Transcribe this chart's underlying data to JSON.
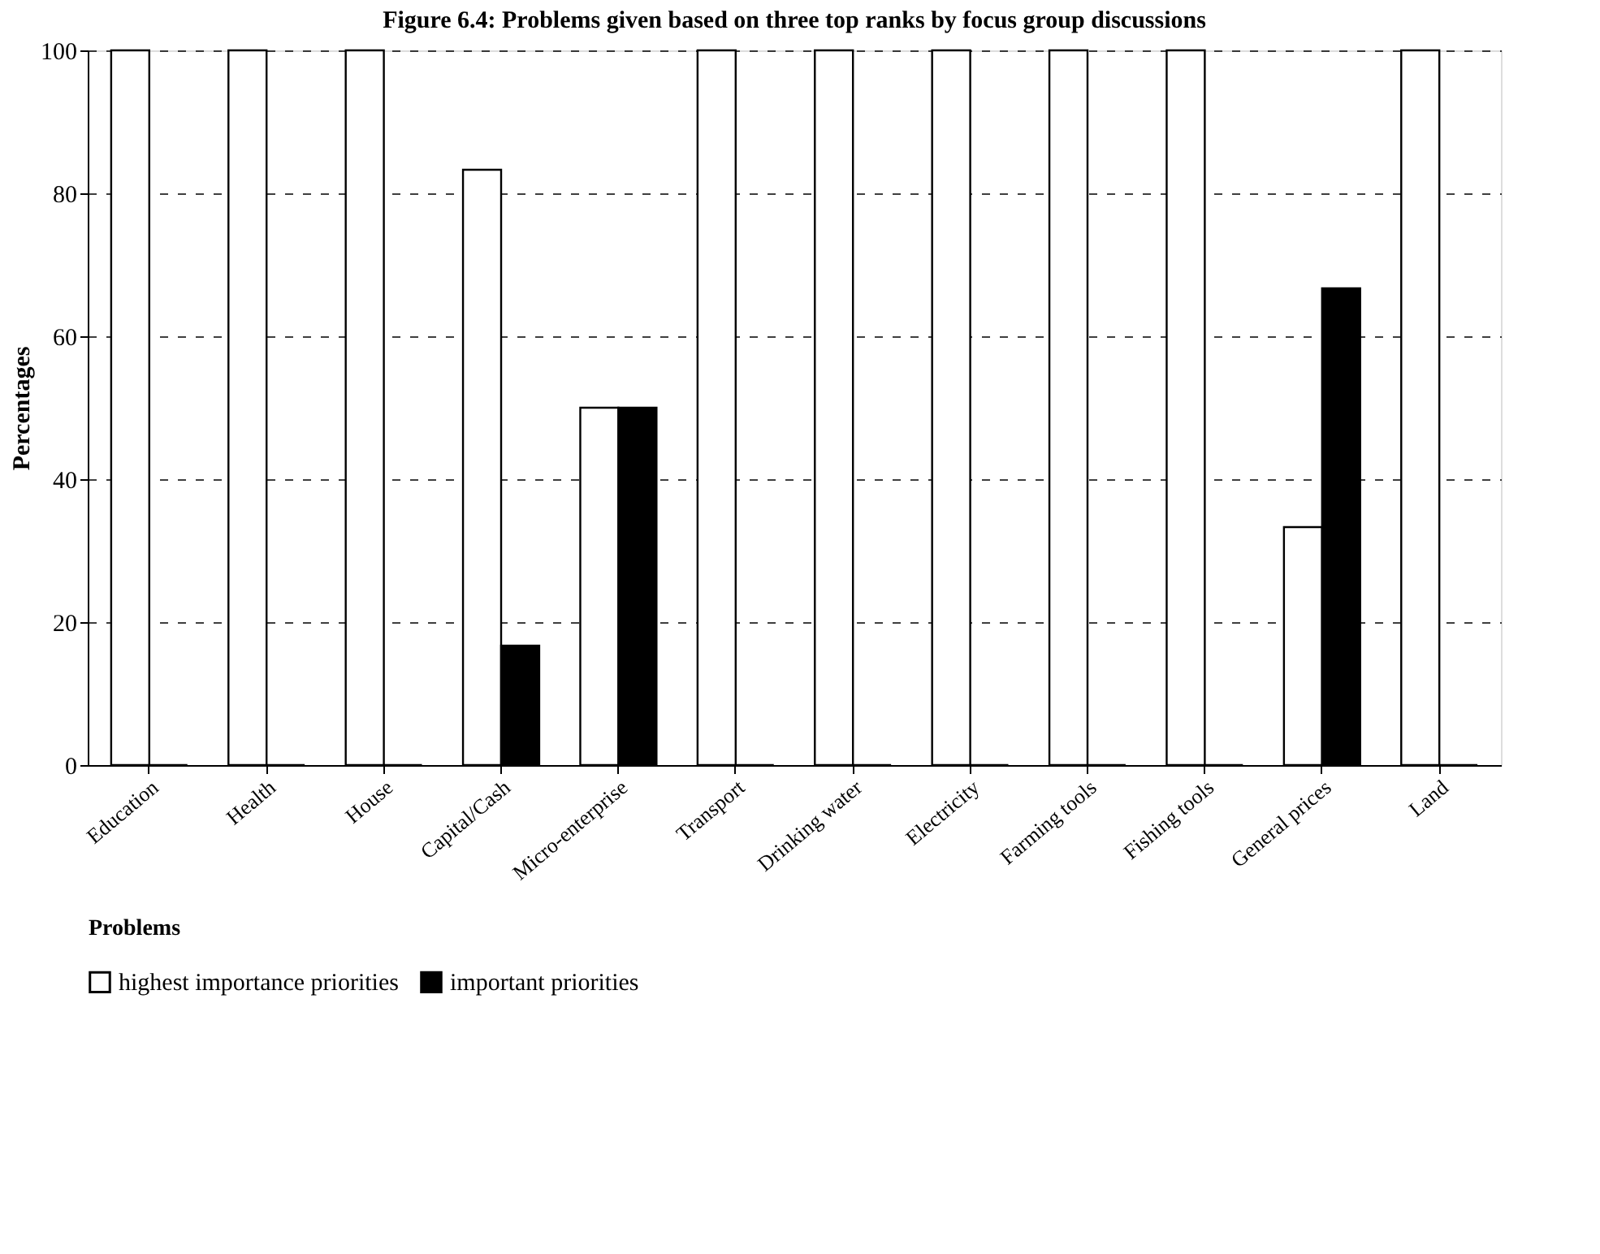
{
  "chart_data": {
    "type": "bar",
    "title": "Figure 6.4: Problems given based on three top ranks by focus group discussions",
    "xlabel": "Problems",
    "ylabel": "Percentages",
    "categories": [
      "Education",
      "Health",
      "House",
      "Capital/Cash",
      "Micro-enterprise",
      "Transport",
      "Drinking water",
      "Electricity",
      "Farming tools",
      "Fishing tools",
      "General prices",
      "Land"
    ],
    "series": [
      {
        "name": "highest importance priorities",
        "color": "#ffffff",
        "values": [
          100,
          100,
          100,
          83.3,
          50,
          100,
          100,
          100,
          100,
          100,
          33.3,
          100
        ]
      },
      {
        "name": "important priorities",
        "color": "#000000",
        "values": [
          0,
          0,
          0,
          16.7,
          50,
          0,
          0,
          0,
          0,
          0,
          66.7,
          0
        ]
      }
    ],
    "ylim": [
      0,
      100
    ],
    "yticks": [
      0,
      20,
      40,
      60,
      80,
      100
    ],
    "grid": "y",
    "legend": "bottom"
  }
}
